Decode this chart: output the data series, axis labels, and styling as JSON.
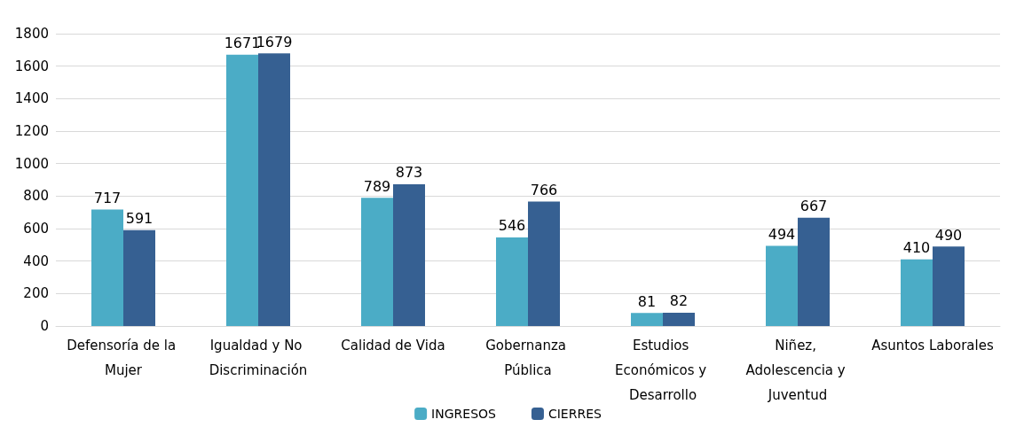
{
  "chart_data": {
    "type": "bar",
    "categories": [
      "Defensoría de la Mujer",
      "Igualdad y No Discriminación",
      "Calidad de Vida",
      "Gobernanza Pública",
      "Estudios Económicos y Desarrollo",
      "Niñez, Adolescencia y Juventud",
      "Asuntos Laborales"
    ],
    "series": [
      {
        "name": "INGRESOS",
        "color": "#4bacc6",
        "values": [
          717,
          1671,
          789,
          546,
          81,
          494,
          410
        ]
      },
      {
        "name": "CIERRES",
        "color": "#366092",
        "values": [
          591,
          1679,
          873,
          766,
          82,
          667,
          490
        ]
      }
    ],
    "ylim": [
      0,
      1800
    ],
    "yticks": [
      0,
      200,
      400,
      600,
      800,
      1000,
      1200,
      1400,
      1600,
      1800
    ],
    "grid": "y",
    "legend": "bottom",
    "data_labels": true
  }
}
